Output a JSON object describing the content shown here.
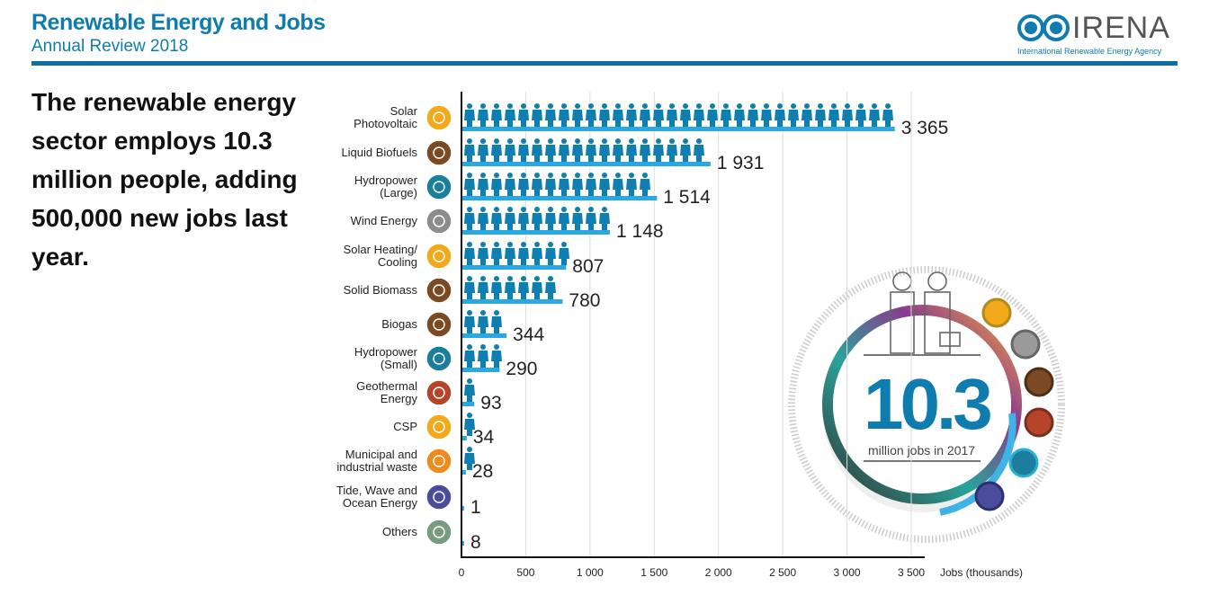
{
  "header": {
    "title": "Renewable Energy and Jobs",
    "subtitle": "Annual Review 2018"
  },
  "logo": {
    "name": "IRENA",
    "tagline": "International Renewable Energy Agency"
  },
  "headline": "The renewable energy sector employs 10.3 million people, adding 500,000 new jobs last year.",
  "callout": {
    "value": "10.3",
    "label": "million jobs in 2017"
  },
  "colors": {
    "brand": "#0e7cae",
    "person": "#0f7eb1",
    "bar": "#29a9e0"
  },
  "chart_data": {
    "type": "bar",
    "orientation": "horizontal",
    "categories": [
      "Solar Photovoltaic",
      "Liquid Biofuels",
      "Hydropower (Large)",
      "Wind Energy",
      "Solar Heating/ Cooling",
      "Solid Biomass",
      "Biogas",
      "Hydropower (Small)",
      "Geothermal Energy",
      "CSP",
      "Municipal and industrial waste",
      "Tide, Wave and Ocean Energy",
      "Others"
    ],
    "icons": [
      "sun-icon",
      "leaf-icon",
      "water-drop-icon",
      "wind-icon",
      "sun-icon",
      "leaf-icon",
      "leaf-icon",
      "water-drop-icon",
      "volcano-icon",
      "sun-icon",
      "waste-icon",
      "wave-icon",
      "plus-icon"
    ],
    "icon_colors": [
      "#f2a91c",
      "#7b4a22",
      "#1b7e9c",
      "#8c8c8c",
      "#f2a91c",
      "#7b4a22",
      "#7b4a22",
      "#1b7e9c",
      "#b4452a",
      "#f2a91c",
      "#f08a1c",
      "#4a4c9c",
      "#7a9c7e"
    ],
    "values": [
      3365,
      1931,
      1514,
      1148,
      807,
      780,
      344,
      290,
      93,
      34,
      28,
      1,
      8
    ],
    "value_labels": [
      "3 365",
      "1 931",
      "1 514",
      "1 148",
      "807",
      "780",
      "344",
      "290",
      "93",
      "34",
      "28",
      "1",
      "8"
    ],
    "xlim": [
      0,
      3500
    ],
    "xticks": [
      0,
      500,
      1000,
      1500,
      2000,
      2500,
      3000,
      3500
    ],
    "xtick_labels": [
      "0",
      "500",
      "1 000",
      "1 500",
      "2 000",
      "2 500",
      "3 000",
      "3 500"
    ],
    "xlabel": "Jobs (thousands)",
    "grid": true
  }
}
